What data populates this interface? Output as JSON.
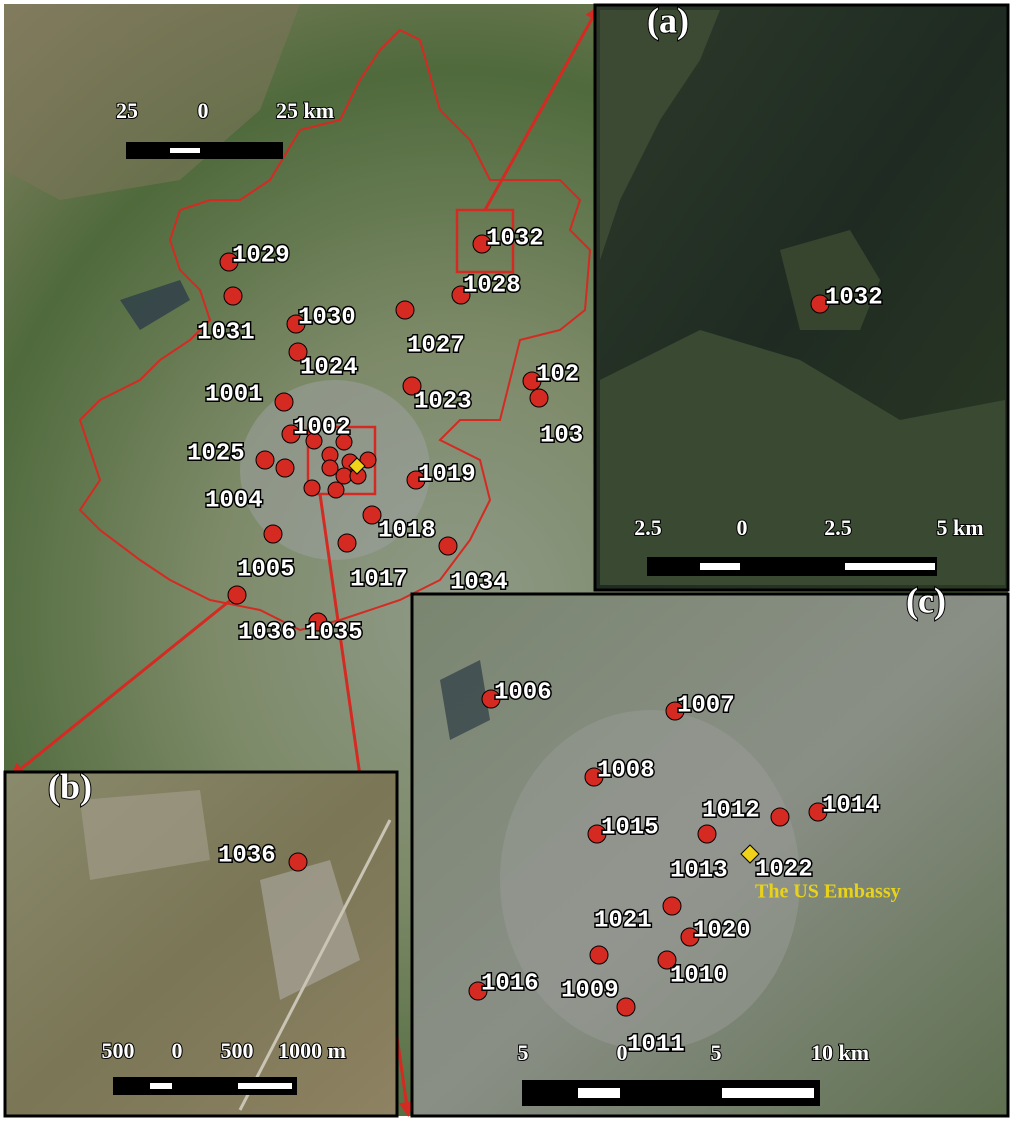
{
  "main_map": {
    "scale_bar": [
      "25",
      "0",
      "25 km"
    ],
    "stations": [
      "1029",
      "1031",
      "1030",
      "1024",
      "1032",
      "1028",
      "1027",
      "1023",
      "102",
      "103",
      "1001",
      "1002",
      "1025",
      "1004",
      "1019",
      "1018",
      "1005",
      "1017",
      "1034",
      "1036",
      "1035"
    ]
  },
  "panel_a": {
    "label": "(a)",
    "stations": [
      "1032"
    ],
    "scale_bar": [
      "2.5",
      "0",
      "2.5",
      "5 km"
    ]
  },
  "panel_b": {
    "label": "(b)",
    "stations": [
      "1036"
    ],
    "scale_bar": [
      "500",
      "0",
      "500",
      "1000 m"
    ]
  },
  "panel_c": {
    "label": "(c)",
    "stations": [
      "1006",
      "1007",
      "1008",
      "1012",
      "1014",
      "1015",
      "1013",
      "1022",
      "1021",
      "1020",
      "1010",
      "1009",
      "1016",
      "1011"
    ],
    "annotation": "The US Embassy",
    "scale_bar": [
      "5",
      "0",
      "5",
      "10 km"
    ]
  }
}
